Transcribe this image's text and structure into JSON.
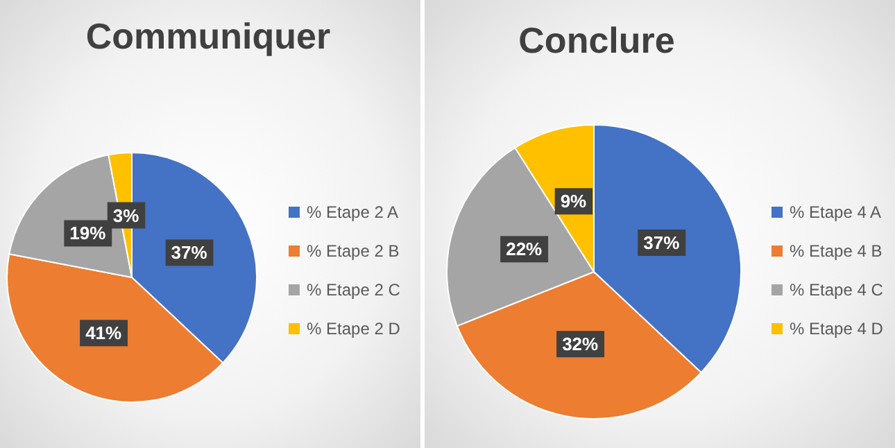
{
  "chart_data": [
    {
      "type": "pie",
      "title": "Communiquer",
      "categories": [
        "% Etape 2 A",
        "% Etape 2 B",
        "% Etape 2 C",
        "% Etape 2 D"
      ],
      "values": [
        37,
        41,
        19,
        3
      ],
      "colors": [
        "#4472c4",
        "#ed7d31",
        "#a5a5a5",
        "#ffc000"
      ],
      "value_labels": [
        "37%",
        "41%",
        "19%",
        "3%"
      ],
      "legend": "right"
    },
    {
      "type": "pie",
      "title": "Conclure",
      "categories": [
        "% Etape 4 A",
        "% Etape 4 B",
        "% Etape 4 C",
        "% Etape 4 D"
      ],
      "values": [
        37,
        32,
        22,
        9
      ],
      "colors": [
        "#4472c4",
        "#ed7d31",
        "#a5a5a5",
        "#ffc000"
      ],
      "value_labels": [
        "37%",
        "32%",
        "22%",
        "9%"
      ],
      "legend": "right"
    }
  ]
}
